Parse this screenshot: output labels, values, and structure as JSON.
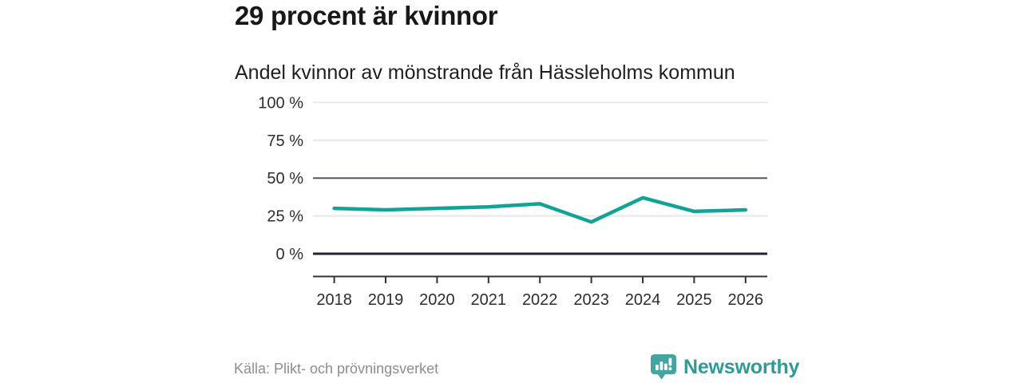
{
  "title": "29 procent är kvinnor",
  "subtitle": "Andel kvinnor av mönstrande från Hässleholms kommun",
  "source": "Källa: Plikt- och prövningsverket",
  "brand": {
    "name": "Newsworthy",
    "icon": "newsworthy-speech-bubble-barchart-icon",
    "icon_color": "#44a4a0",
    "text_color": "#2f9a96"
  },
  "colors": {
    "line": "#12a396",
    "grid_light": "#e8e8e8",
    "grid_mid": "#55555e",
    "axis_zero": "#27272b",
    "axis": "#333333",
    "tick_label": "#2d2d2d"
  },
  "chart_data": {
    "type": "line",
    "x": [
      2018,
      2019,
      2020,
      2021,
      2022,
      2023,
      2024,
      2025,
      2026
    ],
    "series": [
      {
        "name": "Andel kvinnor av mönstrande",
        "values": [
          30,
          29,
          30,
          31,
          33,
          21,
          37,
          28,
          29
        ]
      }
    ],
    "title": "29 procent är kvinnor",
    "subtitle": "Andel kvinnor av mönstrande från Hässleholms kommun",
    "xlabel": "",
    "ylabel": "",
    "ylim": [
      0,
      100
    ],
    "yticks": [
      0,
      25,
      50,
      75,
      100
    ],
    "ytick_labels": [
      "0 %",
      "25 %",
      "50 %",
      "75 %",
      "100 %"
    ],
    "unit": "%",
    "grid": "horizontal",
    "legend": "none",
    "last_value_label": "29"
  }
}
